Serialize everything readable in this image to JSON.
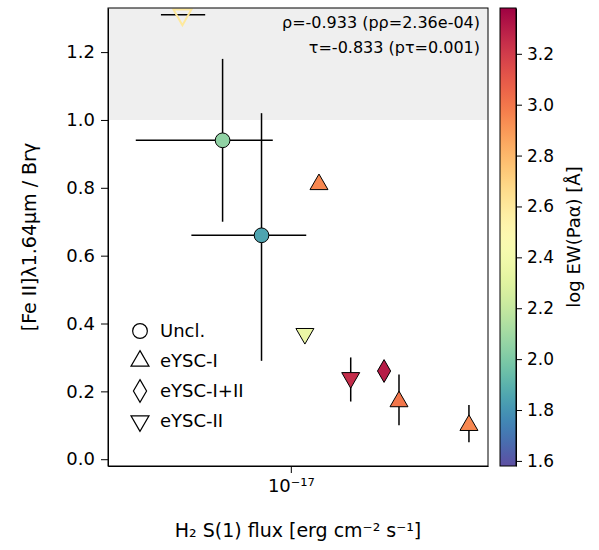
{
  "chart_data": {
    "type": "scatter",
    "x_label": "H₂ S(1) flux [erg cm⁻² s⁻¹]",
    "y_label": "[Fe II]λ1.64μm / Brγ",
    "log": "x",
    "xlim": [
      2.9e-18,
      3.8e-17
    ],
    "xticks": [
      {
        "value": 1e-17,
        "label": "10⁻¹⁷"
      }
    ],
    "ylim": [
      -0.02,
      1.33
    ],
    "yticks": [
      {
        "value": 0,
        "label": "0.0"
      },
      0.2,
      0.4,
      0.6,
      0.8,
      {
        "value": 1,
        "label": "1.0"
      },
      1.2
    ],
    "shaded_above": 1.0,
    "legend": "lower left",
    "annotations": [
      {
        "text": "ρ=-0.933 (pρ=2.36e-04)"
      },
      {
        "text": "τ=-0.833 (pτ=0.001)"
      }
    ],
    "colorbar": {
      "label": "log EW(Paα) [Å]",
      "range": [
        1.58,
        3.38
      ],
      "ticks": [
        1.6,
        1.8,
        {
          "value": 2,
          "label": "2.0"
        },
        2.2,
        2.4,
        2.6,
        2.8,
        {
          "value": 3,
          "label": "3.0"
        },
        3.2
      ]
    },
    "series": [
      {
        "name": "Uncl.",
        "marker": "circle",
        "x": [
          6.3e-18,
          8.2e-18
        ],
        "values": [
          0.94,
          0.66
        ],
        "xerr": [
          [
            2.8e-18,
            2.55e-18
          ],
          [
            3.1e-18,
            2.9e-18
          ]
        ],
        "yerr": [
          [
            0.24,
            0.24
          ],
          [
            0.37,
            0.36
          ]
        ],
        "ew": [
          2.05,
          1.85
        ]
      },
      {
        "name": "eYSC-I",
        "marker": "triangle-up",
        "x": [
          1.21e-17,
          2.08e-17,
          3.34e-17
        ],
        "values": [
          0.81,
          0.17,
          0.1
        ],
        "yerr": [
          null,
          [
            0.07,
            0.08
          ],
          [
            0.05,
            0.06
          ]
        ],
        "ew": [
          2.95,
          3.0,
          2.95
        ]
      },
      {
        "name": "eYSC-I+II",
        "marker": "diamond",
        "x": [
          1.88e-17
        ],
        "values": [
          0.26
        ],
        "yerr": [
          [
            0.03,
            0.03
          ]
        ],
        "ew": [
          3.3
        ]
      },
      {
        "name": "eYSC-II",
        "marker": "triangle-down",
        "x": [
          1.1e-17,
          1.5e-17
        ],
        "values": [
          0.37,
          0.24
        ],
        "yerr": [
          null,
          [
            0.07,
            0.06
          ]
        ],
        "ew": [
          2.35,
          3.25
        ]
      },
      {
        "marker": "triangle-down-open",
        "x": [
          4.8e-18
        ],
        "values": [
          1.31
        ],
        "xerr": [
          [
            6.5e-19,
            8e-19
          ]
        ],
        "ew": [
          2.6
        ]
      }
    ]
  }
}
